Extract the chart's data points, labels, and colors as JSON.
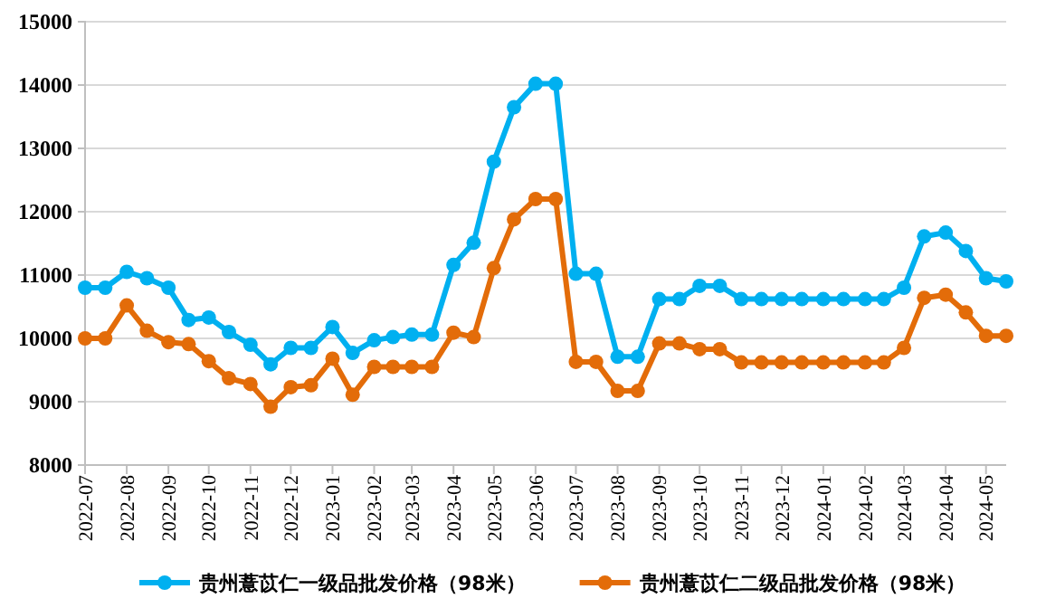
{
  "chart_data": {
    "type": "line",
    "x": [
      "2022-07",
      "2022-07-16",
      "2022-08",
      "2022-08-16",
      "2022-09",
      "2022-09-16",
      "2022-10",
      "2022-10-16",
      "2022-11",
      "2022-11-16",
      "2022-12",
      "2022-12-16",
      "2023-01",
      "2023-01-16",
      "2023-02",
      "2023-02-15",
      "2023-03",
      "2023-03-16",
      "2023-04",
      "2023-04-16",
      "2023-05",
      "2023-05-16",
      "2023-06",
      "2023-06-16",
      "2023-07",
      "2023-07-16",
      "2023-08",
      "2023-08-16",
      "2023-09",
      "2023-09-16",
      "2023-10",
      "2023-10-16",
      "2023-11",
      "2023-11-16",
      "2023-12",
      "2023-12-16",
      "2024-01",
      "2024-01-16",
      "2024-02",
      "2024-02-15",
      "2024-03",
      "2024-03-16",
      "2024-04",
      "2024-04-16",
      "2024-05",
      "2024-05-16"
    ],
    "series": [
      {
        "name": "贵州薏苡仁一级品批发价格（98米）",
        "color": "#00b0f0",
        "values": [
          10800,
          10800,
          11050,
          10950,
          10800,
          10290,
          10330,
          10100,
          9900,
          9590,
          9850,
          9850,
          10180,
          9770,
          9970,
          10020,
          10060,
          10060,
          11160,
          11510,
          12790,
          13650,
          14020,
          14020,
          11020,
          11020,
          9710,
          9710,
          10620,
          10620,
          10830,
          10830,
          10620,
          10620,
          10620,
          10620,
          10620,
          10620,
          10620,
          10620,
          10800,
          11610,
          11670,
          11380,
          10950,
          10900
        ]
      },
      {
        "name": "贵州薏苡仁二级品批发价格（98米）",
        "color": "#e36c09",
        "values": [
          10000,
          10000,
          10520,
          10120,
          9940,
          9910,
          9640,
          9370,
          9280,
          8920,
          9230,
          9260,
          9680,
          9110,
          9550,
          9550,
          9550,
          9550,
          10090,
          10020,
          11110,
          11880,
          12200,
          12200,
          9630,
          9630,
          9170,
          9170,
          9920,
          9920,
          9830,
          9830,
          9620,
          9620,
          9620,
          9620,
          9620,
          9620,
          9620,
          9620,
          9850,
          10640,
          10690,
          10410,
          10040,
          10040
        ]
      }
    ],
    "xlim": [
      "2022-07",
      "2024-05-16"
    ],
    "xticks": [
      "2022-07",
      "2022-08",
      "2022-09",
      "2022-10",
      "2022-11",
      "2022-12",
      "2023-01",
      "2023-02",
      "2023-03",
      "2023-04",
      "2023-05",
      "2023-06",
      "2023-07",
      "2023-08",
      "2023-09",
      "2023-10",
      "2023-11",
      "2023-12",
      "2024-01",
      "2024-02",
      "2024-03",
      "2024-04",
      "2024-05"
    ],
    "ylim": [
      8000,
      15000
    ],
    "yticks": [
      8000,
      9000,
      10000,
      11000,
      12000,
      13000,
      14000,
      15000
    ],
    "grid": "y",
    "legend": "bottom",
    "marker": "circle",
    "line_style": "solid"
  }
}
